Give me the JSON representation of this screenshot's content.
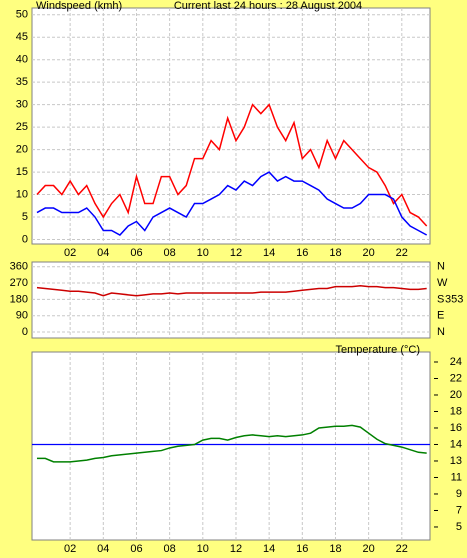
{
  "chart_data": [
    {
      "type": "line",
      "title": "Current last 24 hours : 28 August 2004",
      "ylabel": "Windspeed (kmh)",
      "x": [
        0,
        0.5,
        1,
        1.5,
        2,
        2.5,
        3,
        3.5,
        4,
        4.5,
        5,
        5.5,
        6,
        6.5,
        7,
        7.5,
        8,
        8.5,
        9,
        9.5,
        10,
        10.5,
        11,
        11.5,
        12,
        12.5,
        13,
        13.5,
        14,
        14.5,
        15,
        15.5,
        16,
        16.5,
        17,
        17.5,
        18,
        18.5,
        19,
        19.5,
        20,
        20.5,
        21,
        21.5,
        22,
        22.5,
        23,
        23.5
      ],
      "series": [
        {
          "color": "#ff0000",
          "values": [
            10,
            12,
            12,
            10,
            13,
            10,
            12,
            8,
            5,
            8,
            10,
            6,
            14,
            8,
            8,
            14,
            14,
            10,
            12,
            18,
            18,
            22,
            20,
            27,
            22,
            25,
            30,
            28,
            30,
            25,
            22,
            26,
            18,
            20,
            16,
            22,
            18,
            22,
            20,
            18,
            16,
            15,
            12,
            8,
            10,
            6,
            5,
            3
          ]
        },
        {
          "color": "#0000ff",
          "values": [
            6,
            7,
            7,
            6,
            6,
            6,
            7,
            5,
            2,
            2,
            1,
            3,
            4,
            2,
            5,
            6,
            7,
            6,
            5,
            8,
            8,
            9,
            10,
            12,
            11,
            13,
            12,
            14,
            15,
            13,
            14,
            13,
            13,
            12,
            11,
            9,
            8,
            7,
            7,
            8,
            10,
            10,
            10,
            9,
            5,
            3,
            2,
            1
          ]
        }
      ],
      "xlim": [
        -0.3,
        23.7
      ],
      "ylim": [
        -1,
        51.5
      ],
      "xticks": [
        {
          "value": 2,
          "label": "02"
        },
        {
          "value": 4,
          "label": "04"
        },
        {
          "value": 6,
          "label": "06"
        },
        {
          "value": 8,
          "label": "08"
        },
        {
          "value": 10,
          "label": "10"
        },
        {
          "value": 12,
          "label": "12"
        },
        {
          "value": 14,
          "label": "14"
        },
        {
          "value": 16,
          "label": "16"
        },
        {
          "value": 18,
          "label": "18"
        },
        {
          "value": 20,
          "label": "20"
        },
        {
          "value": 22,
          "label": "22"
        }
      ],
      "yticks": [
        0,
        5,
        10,
        15,
        20,
        25,
        30,
        35,
        40,
        45,
        50
      ],
      "grid": "both"
    },
    {
      "type": "line",
      "x": [
        0,
        0.5,
        1,
        1.5,
        2,
        2.5,
        3,
        3.5,
        4,
        4.5,
        5,
        5.5,
        6,
        6.5,
        7,
        7.5,
        8,
        8.5,
        9,
        9.5,
        10,
        10.5,
        11,
        11.5,
        12,
        12.5,
        13,
        13.5,
        14,
        14.5,
        15,
        15.5,
        16,
        16.5,
        17,
        17.5,
        18,
        18.5,
        19,
        19.5,
        20,
        20.5,
        21,
        21.5,
        22,
        22.5,
        23,
        23.5
      ],
      "series": [
        {
          "color": "#cc0000",
          "values": [
            245,
            240,
            235,
            230,
            225,
            225,
            220,
            215,
            200,
            215,
            210,
            205,
            200,
            205,
            210,
            210,
            215,
            210,
            215,
            215,
            215,
            215,
            215,
            215,
            215,
            215,
            215,
            220,
            220,
            220,
            220,
            225,
            230,
            235,
            240,
            240,
            250,
            250,
            250,
            255,
            250,
            250,
            245,
            245,
            240,
            235,
            235,
            240
          ]
        }
      ],
      "current_value": 353,
      "xlim": [
        -0.3,
        23.7
      ],
      "ylim": [
        -33,
        386
      ],
      "y2lim": [
        -33,
        386
      ],
      "xgrid": [
        2,
        4,
        6,
        8,
        10,
        12,
        14,
        16,
        18,
        20,
        22
      ],
      "yticks": [
        0,
        90,
        180,
        270,
        360
      ],
      "y2ticks": [
        {
          "value": 360,
          "label": "N"
        },
        {
          "value": 270,
          "label": "W"
        },
        {
          "value": 180,
          "label": "S"
        },
        {
          "value": 90,
          "label": "E"
        },
        {
          "value": 0,
          "label": "N"
        }
      ],
      "grid": "both"
    },
    {
      "type": "line",
      "ylabel": "Temperature (°C)",
      "x": [
        0,
        0.5,
        1,
        1.5,
        2,
        2.5,
        3,
        3.5,
        4,
        4.5,
        5,
        5.5,
        6,
        6.5,
        7,
        7.5,
        8,
        8.5,
        9,
        9.5,
        10,
        10.5,
        11,
        11.5,
        12,
        12.5,
        13,
        13.5,
        14,
        14.5,
        15,
        15.5,
        16,
        16.5,
        17,
        17.5,
        18,
        18.5,
        19,
        19.5,
        20,
        20.5,
        21,
        21.5,
        22,
        22.5,
        23,
        23.5
      ],
      "series": [
        {
          "color": "#008000",
          "axis": "y2",
          "values": [
            12.9,
            12.9,
            12.5,
            12.5,
            12.5,
            12.6,
            12.7,
            12.9,
            13.0,
            13.2,
            13.3,
            13.4,
            13.5,
            13.6,
            13.7,
            13.8,
            14.1,
            14.3,
            14.4,
            14.5,
            15.0,
            15.2,
            15.2,
            15.0,
            15.3,
            15.5,
            15.6,
            15.5,
            15.4,
            15.5,
            15.4,
            15.5,
            15.6,
            15.8,
            16.4,
            16.5,
            16.6,
            16.6,
            16.7,
            16.5,
            15.8,
            15.1,
            14.6,
            14.4,
            14.2,
            13.9,
            13.6,
            13.5
          ]
        }
      ],
      "reference_line": {
        "value": 14.5,
        "color": "#0000ff"
      },
      "xlim": [
        -0.3,
        23.7
      ],
      "y2lim": [
        3.5,
        25.15
      ],
      "xticks": [
        {
          "value": 2,
          "label": "02"
        },
        {
          "value": 4,
          "label": "04"
        },
        {
          "value": 6,
          "label": "06"
        },
        {
          "value": 8,
          "label": "08"
        },
        {
          "value": 10,
          "label": "10"
        },
        {
          "value": 12,
          "label": "12"
        },
        {
          "value": 14,
          "label": "14"
        },
        {
          "value": 16,
          "label": "16"
        },
        {
          "value": 18,
          "label": "18"
        },
        {
          "value": 20,
          "label": "20"
        },
        {
          "value": 22,
          "label": "22"
        }
      ],
      "y2ticks": [
        24,
        {
          "value": 22.1,
          "label": "22"
        },
        {
          "value": 20.2,
          "label": "20"
        },
        {
          "value": 18.3,
          "label": "18"
        },
        {
          "value": 16.4,
          "label": "16"
        },
        {
          "value": 14.5,
          "label": "14"
        },
        {
          "value": 12.6,
          "label": "13"
        },
        {
          "value": 10.7,
          "label": "11"
        },
        {
          "value": 8.8,
          "label": "9"
        },
        {
          "value": 6.9,
          "label": "7"
        },
        5
      ],
      "grid": "x"
    }
  ]
}
